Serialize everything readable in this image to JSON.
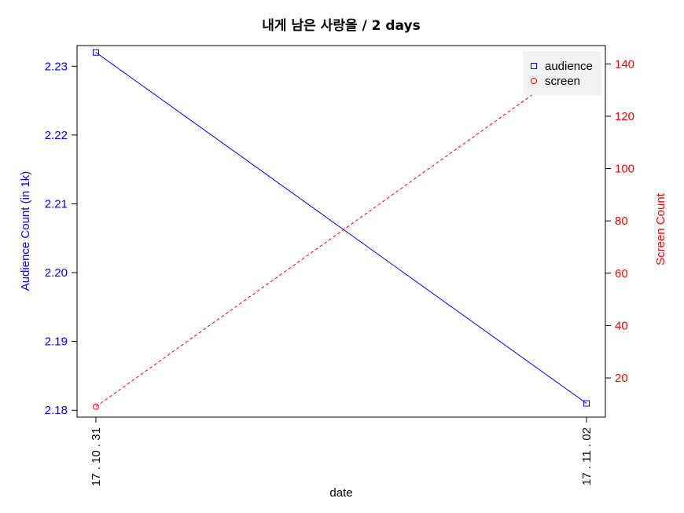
{
  "chart_data": {
    "type": "line",
    "title": "내게 남은 사랑을 / 2 days",
    "xlabel": "date",
    "categories": [
      "17 . 10 . 31",
      "17 . 11 . 02"
    ],
    "left_axis": {
      "label": "Audience Count (in 1k)",
      "color": "#0000ff",
      "ylim": [
        2.179,
        2.233
      ],
      "ticks": [
        "2.18",
        "2.19",
        "2.20",
        "2.21",
        "2.22",
        "2.23"
      ]
    },
    "right_axis": {
      "label": "Screen Count",
      "color": "#ff0000",
      "ylim": [
        5,
        147
      ],
      "ticks": [
        "20",
        "40",
        "60",
        "80",
        "100",
        "120",
        "140"
      ]
    },
    "series": [
      {
        "name": "audience",
        "axis": "left",
        "color": "#0000ff",
        "marker": "square",
        "line": "solid",
        "values": [
          2.232,
          2.181
        ]
      },
      {
        "name": "screen",
        "axis": "right",
        "color": "#ff0000",
        "marker": "circle",
        "line": "dashed",
        "values": [
          9,
          143
        ]
      }
    ],
    "legend": {
      "placement": "top-right"
    },
    "grid": false
  }
}
